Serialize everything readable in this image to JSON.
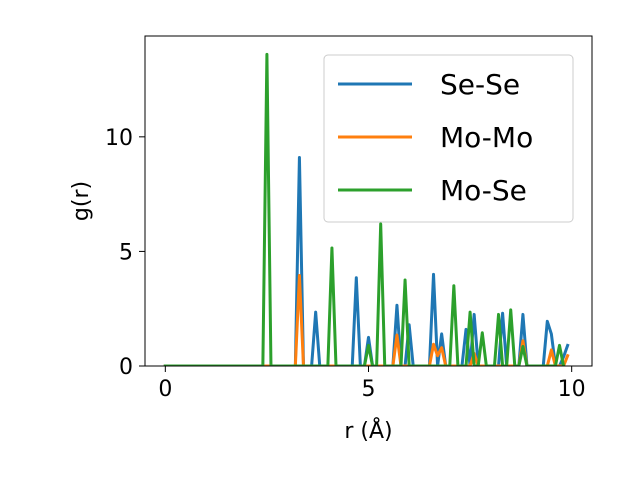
{
  "chart_data": {
    "type": "line",
    "xlabel": "r (Å)",
    "ylabel": "g(r)",
    "xlim": [
      -0.5,
      10.5
    ],
    "ylim": [
      0,
      14.4
    ],
    "xticks": [
      0,
      5,
      10
    ],
    "yticks": [
      0,
      5,
      10
    ],
    "x_tick_labels": [
      "0",
      "5",
      "10"
    ],
    "y_tick_labels": [
      "0",
      "5",
      "10"
    ],
    "grid": false,
    "legend_position": "top-right",
    "series": [
      {
        "name": "Se-Se",
        "color": "#1f77b4",
        "x": [
          0,
          3.2,
          3.3,
          3.4,
          3.6,
          3.7,
          3.8,
          4.6,
          4.7,
          4.8,
          4.9,
          5.0,
          5.1,
          5.6,
          5.7,
          5.8,
          5.9,
          6.0,
          6.1,
          6.5,
          6.6,
          6.7,
          6.8,
          6.9,
          7.0,
          7.3,
          7.4,
          7.5,
          7.6,
          7.7,
          8.2,
          8.3,
          8.4,
          8.5,
          8.6,
          8.7,
          8.8,
          8.9,
          9.3,
          9.4,
          9.5,
          9.6,
          9.7,
          9.8,
          9.9
        ],
        "y": [
          0,
          0,
          9.1,
          0,
          0,
          2.35,
          0,
          0,
          3.85,
          0,
          0,
          1.25,
          0,
          0,
          2.65,
          0,
          0,
          1.8,
          0,
          0,
          4.0,
          0,
          1.4,
          0,
          0,
          0,
          1.6,
          0,
          2.25,
          0,
          0,
          2.3,
          0,
          0,
          0,
          0,
          2.25,
          0,
          0,
          1.95,
          1.4,
          0,
          0,
          0.4,
          0.9
        ]
      },
      {
        "name": "Mo-Mo",
        "color": "#ff7f0e",
        "x": [
          0,
          3.2,
          3.3,
          3.4,
          5.6,
          5.7,
          5.8,
          6.5,
          6.6,
          6.7,
          6.8,
          6.9,
          7.5,
          7.6,
          7.7,
          8.7,
          8.8,
          8.9,
          9.4,
          9.5,
          9.6,
          9.8,
          9.9
        ],
        "y": [
          0,
          0,
          3.95,
          0,
          0,
          1.35,
          0,
          0,
          0.95,
          0.45,
          0.8,
          0,
          0,
          0.55,
          0,
          0,
          1.1,
          0,
          0,
          0.7,
          0,
          0,
          0.45
        ]
      },
      {
        "name": "Mo-Se",
        "color": "#2ca02c",
        "x": [
          0,
          2.4,
          2.5,
          2.6,
          4.0,
          4.1,
          4.2,
          4.9,
          5.0,
          5.1,
          5.2,
          5.3,
          5.4,
          5.8,
          5.9,
          6.0,
          7.0,
          7.1,
          7.2,
          7.4,
          7.5,
          7.6,
          7.7,
          7.8,
          7.9,
          8.1,
          8.2,
          8.3,
          8.4,
          8.5,
          8.6,
          8.7,
          8.8,
          8.9,
          9.0,
          9.1,
          9.6,
          9.7,
          9.8
        ],
        "y": [
          0,
          0,
          13.6,
          0,
          0,
          5.15,
          0,
          0,
          0.9,
          0,
          0,
          6.2,
          0,
          0,
          3.75,
          0,
          0,
          3.5,
          0,
          0,
          2.35,
          0,
          0,
          1.45,
          0,
          0,
          2.25,
          0,
          0,
          2.45,
          0,
          0,
          0.85,
          0,
          0,
          0,
          0,
          0.9,
          0
        ]
      }
    ]
  }
}
